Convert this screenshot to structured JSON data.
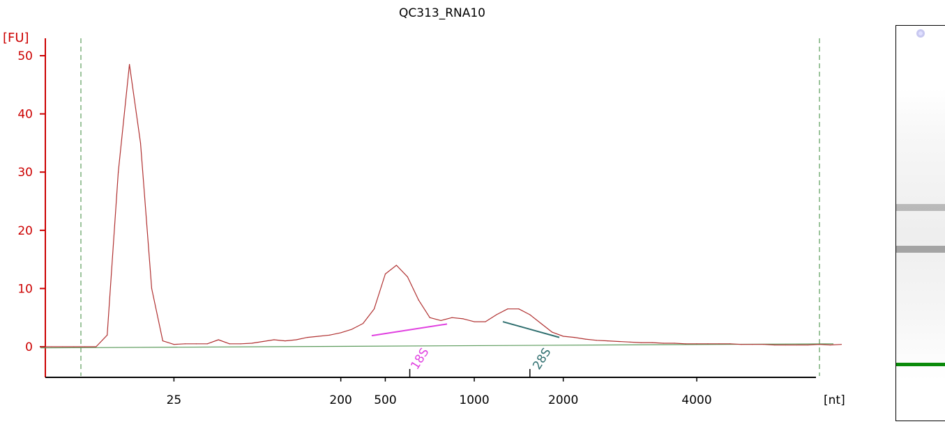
{
  "chart_data": {
    "type": "line",
    "title": "QC313_RNA10",
    "ylabel": "[FU]",
    "xlabel": "[nt]",
    "ylim": [
      -5,
      52
    ],
    "y_ticks": [
      0,
      10,
      20,
      30,
      40,
      50
    ],
    "x_tick_labels": [
      "25",
      "200",
      "500",
      "1000",
      "2000",
      "4000"
    ],
    "x_scale": "ladder (non-linear)",
    "grid": false,
    "series": [
      {
        "color": "#b03030",
        "x": [
          "trace start",
          "trace start",
          "trace start",
          "trace start",
          "trace start",
          "",
          "",
          "",
          "",
          "",
          "",
          "",
          "25",
          "",
          "",
          "",
          "",
          "",
          "",
          "",
          "",
          "",
          "",
          "",
          "",
          "",
          "",
          "200",
          "",
          "",
          "",
          "500",
          "",
          "",
          "",
          "",
          "",
          "",
          "",
          "1000",
          "",
          "",
          "",
          "",
          "",
          "",
          "",
          "2000",
          "",
          "",
          "",
          "",
          "",
          "",
          "",
          "",
          "",
          "",
          "",
          "4000",
          "",
          "",
          "",
          "",
          "",
          "",
          "",
          "",
          "",
          "",
          "",
          "",
          ""
        ],
        "values": [
          0.0,
          0.0,
          0.0,
          0.0,
          0.0,
          0.0,
          2.0,
          30.0,
          48.5,
          35.0,
          10.0,
          1.0,
          0.4,
          0.5,
          0.5,
          0.5,
          1.2,
          0.5,
          0.5,
          0.6,
          0.9,
          1.2,
          1.0,
          1.2,
          1.6,
          1.8,
          2.0,
          2.4,
          3.0,
          4.0,
          6.5,
          12.5,
          14.0,
          12.0,
          8.0,
          5.0,
          4.5,
          5.0,
          4.8,
          4.3,
          4.3,
          5.5,
          6.5,
          6.5,
          5.5,
          4.0,
          2.5,
          1.8,
          1.6,
          1.3,
          1.1,
          1.0,
          0.9,
          0.8,
          0.7,
          0.7,
          0.6,
          0.6,
          0.5,
          0.5,
          0.5,
          0.5,
          0.5,
          0.4,
          0.4,
          0.4,
          0.3,
          0.3,
          0.3,
          0.3,
          0.4,
          0.3,
          0.4
        ]
      }
    ],
    "baseline": {
      "color": "#5a9a5a",
      "from_fu": -0.2,
      "to_fu": 0.5
    },
    "annotations": [
      {
        "label": "18S",
        "color": "#e040e0",
        "from_fu": 1.9,
        "to_fu": 3.9
      },
      {
        "label": "28S",
        "color": "#2e6e6e",
        "from_fu": 4.3,
        "to_fu": 1.6
      }
    ],
    "markers": [
      {
        "name": "left-window",
        "style": "dashed",
        "color": "#3a8a3a"
      },
      {
        "name": "right-window",
        "style": "dashed",
        "color": "#3a8a3a"
      }
    ],
    "axis_color": "#cc0000"
  },
  "gel": {
    "marker_color": "#0a8a0a",
    "bands": [
      {
        "name": "28S",
        "intensity": 0.45
      },
      {
        "name": "18S",
        "intensity": 0.6
      }
    ]
  }
}
